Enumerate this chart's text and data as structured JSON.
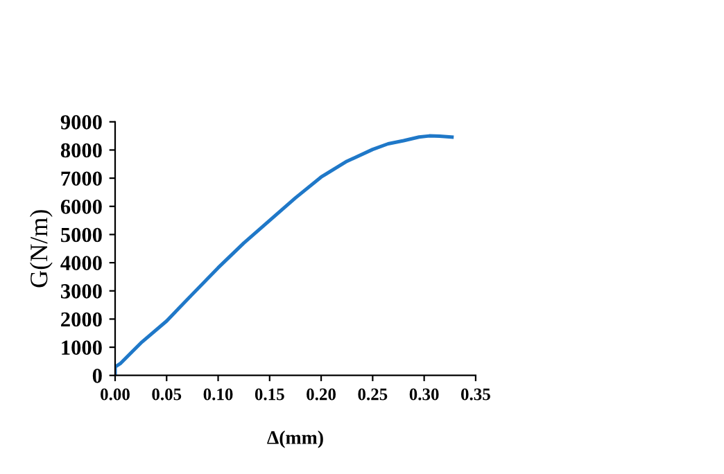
{
  "chart_data": {
    "type": "line",
    "xlabel": "Δ(mm)",
    "ylabel": "G(N/m)",
    "series": [
      {
        "color": "#1f78c8",
        "x": [
          0,
          0,
          0.005,
          0.025,
          0.05,
          0.075,
          0.1,
          0.125,
          0.15,
          0.175,
          0.2,
          0.225,
          0.25,
          0.265,
          0.28,
          0.295,
          0.305,
          0.315,
          0.327
        ],
        "values": [
          0,
          300,
          420,
          1150,
          1930,
          2880,
          3820,
          4700,
          5500,
          6300,
          7040,
          7600,
          8020,
          8220,
          8330,
          8460,
          8500,
          8490,
          8460
        ]
      }
    ],
    "xlim": [
      0,
      0.35
    ],
    "xticks": [
      {
        "value": 0,
        "label": "0.00"
      },
      {
        "value": 0.05,
        "label": "0.05"
      },
      {
        "value": 0.1,
        "label": "0.10"
      },
      {
        "value": 0.15,
        "label": "0.15"
      },
      {
        "value": 0.2,
        "label": "0.20"
      },
      {
        "value": 0.25,
        "label": "0.25"
      },
      {
        "value": 0.3,
        "label": "0.30"
      },
      {
        "value": 0.35,
        "label": "0.35"
      }
    ],
    "ylim": [
      0,
      9000
    ],
    "yticks": [
      0,
      1000,
      2000,
      3000,
      4000,
      5000,
      6000,
      7000,
      8000,
      9000
    ],
    "grid": false,
    "legend": false,
    "marker": "none",
    "line_style": "solid"
  }
}
